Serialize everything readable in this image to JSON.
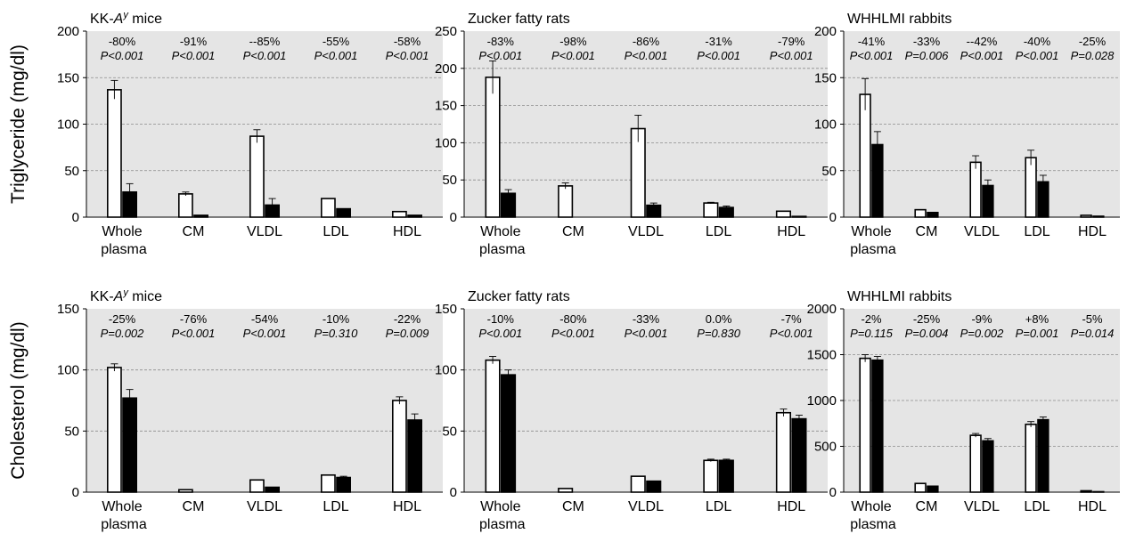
{
  "chart_data": [
    {
      "type": "bar",
      "row_label": "Triglyceride (mg/dl)",
      "title": "KK-A^y mice",
      "title_main": "KK-",
      "title_italic": "A",
      "title_sup": "y",
      "title_end": " mice",
      "categories": [
        "Whole plasma",
        "CM",
        "VLDL",
        "LDL",
        "HDL"
      ],
      "series": [
        {
          "values": [
            137,
            25,
            87,
            20,
            6
          ],
          "errors": [
            10,
            2,
            7,
            0,
            0
          ],
          "color": "#ffffff"
        },
        {
          "values": [
            27,
            2,
            13,
            9,
            2
          ],
          "errors": [
            9,
            0,
            7,
            0,
            0
          ],
          "color": "#000000"
        }
      ],
      "ylim": [
        0,
        200
      ],
      "yticks": [
        0,
        50,
        100,
        150,
        200
      ],
      "change_labels": [
        "-80%",
        "-91%",
        "--85%",
        "-55%",
        "-58%"
      ],
      "p_labels": [
        "P<0.001",
        "P<0.001",
        "P<0.001",
        "P<0.001",
        "P<0.001"
      ]
    },
    {
      "type": "bar",
      "title": "Zucker fatty rats",
      "categories": [
        "Whole plasma",
        "CM",
        "VLDL",
        "LDL",
        "HDL"
      ],
      "series": [
        {
          "values": [
            188,
            42,
            119,
            19,
            8
          ],
          "errors": [
            22,
            4,
            18,
            1,
            0
          ],
          "color": "#ffffff"
        },
        {
          "values": [
            32,
            0,
            16,
            13,
            1
          ],
          "errors": [
            5,
            0,
            3,
            2,
            0
          ],
          "color": "#000000"
        }
      ],
      "ylim": [
        0,
        250
      ],
      "yticks": [
        0,
        50,
        100,
        150,
        200,
        250
      ],
      "change_labels": [
        "-83%",
        "-98%",
        "-86%",
        "-31%",
        "-79%"
      ],
      "p_labels": [
        "P<0.001",
        "P<0.001",
        "P<0.001",
        "P<0.001",
        "P<0.001"
      ]
    },
    {
      "type": "bar",
      "title": "WHHLMI rabbits",
      "categories": [
        "Whole plasma",
        "CM",
        "VLDL",
        "LDL",
        "HDL"
      ],
      "series": [
        {
          "values": [
            132,
            8,
            59,
            64,
            2
          ],
          "errors": [
            17,
            0,
            7,
            8,
            0
          ],
          "color": "#ffffff"
        },
        {
          "values": [
            78,
            5,
            34,
            38,
            1
          ],
          "errors": [
            14,
            0,
            6,
            7,
            0
          ],
          "color": "#000000"
        }
      ],
      "ylim": [
        0,
        200
      ],
      "yticks": [
        0,
        50,
        100,
        150,
        200
      ],
      "change_labels": [
        "-41%",
        "-33%",
        "--42%",
        "-40%",
        "-25%"
      ],
      "p_labels": [
        "P<0.001",
        "P=0.006",
        "P<0.001",
        "P<0.001",
        "P=0.028"
      ]
    },
    {
      "type": "bar",
      "row_label": "Cholesterol (mg/dl)",
      "title": "KK-A^y mice",
      "title_main": "KK-",
      "title_italic": "A",
      "title_sup": "y",
      "title_end": " mice",
      "categories": [
        "Whole plasma",
        "CM",
        "VLDL",
        "LDL",
        "HDL"
      ],
      "series": [
        {
          "values": [
            102,
            2,
            10,
            14,
            75
          ],
          "errors": [
            3,
            0,
            0,
            0,
            3
          ],
          "color": "#ffffff"
        },
        {
          "values": [
            77,
            0,
            4,
            12,
            59
          ],
          "errors": [
            7,
            0,
            0,
            1,
            5
          ],
          "color": "#000000"
        }
      ],
      "ylim": [
        0,
        150
      ],
      "yticks": [
        0,
        50,
        100,
        150
      ],
      "change_labels": [
        "-25%",
        "-76%",
        "-54%",
        "-10%",
        "-22%"
      ],
      "p_labels": [
        "P=0.002",
        "P<0.001",
        "P<0.001",
        "P=0.310",
        "P=0.009"
      ]
    },
    {
      "type": "bar",
      "title": "Zucker fatty rats",
      "categories": [
        "Whole plasma",
        "CM",
        "VLDL",
        "LDL",
        "HDL"
      ],
      "series": [
        {
          "values": [
            108,
            3,
            13,
            26,
            65
          ],
          "errors": [
            3,
            0,
            0,
            1,
            3
          ],
          "color": "#ffffff"
        },
        {
          "values": [
            96,
            0,
            9,
            26,
            60
          ],
          "errors": [
            4,
            0,
            0,
            1,
            3
          ],
          "color": "#000000"
        }
      ],
      "ylim": [
        0,
        150
      ],
      "yticks": [
        0,
        50,
        100,
        150
      ],
      "change_labels": [
        "-10%",
        "-80%",
        "-33%",
        "0.0%",
        "-7%"
      ],
      "p_labels": [
        "P<0.001",
        "P<0.001",
        "P<0.001",
        "P=0.830",
        "P<0.001"
      ]
    },
    {
      "type": "bar",
      "title": "WHHLMI rabbits",
      "categories": [
        "Whole plasma",
        "CM",
        "VLDL",
        "LDL",
        "HDL"
      ],
      "series": [
        {
          "values": [
            1460,
            95,
            620,
            740,
            15
          ],
          "errors": [
            40,
            0,
            20,
            30,
            0
          ],
          "color": "#ffffff"
        },
        {
          "values": [
            1440,
            65,
            560,
            790,
            5
          ],
          "errors": [
            40,
            0,
            25,
            30,
            0
          ],
          "color": "#000000"
        }
      ],
      "ylim": [
        0,
        2000
      ],
      "yticks": [
        0,
        500,
        1000,
        1500,
        2000
      ],
      "change_labels": [
        "-2%",
        "-25%",
        "-9%",
        "+8%",
        "-5%"
      ],
      "p_labels": [
        "P=0.115",
        "P=0.004",
        "P=0.002",
        "P=0.001",
        "P=0.014"
      ]
    }
  ]
}
